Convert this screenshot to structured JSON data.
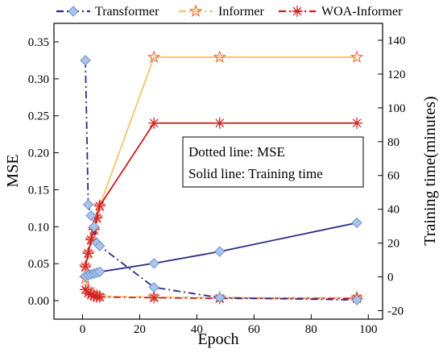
{
  "chart_data": {
    "type": "line",
    "xlabel": "Epoch",
    "ylabel": "MSE",
    "y2label": "Training time(minutes)",
    "xlim": [
      -10,
      105
    ],
    "ylim": [
      -0.025,
      0.375
    ],
    "y2lim": [
      -25,
      150
    ],
    "xticks": [
      0,
      20,
      40,
      60,
      80,
      100
    ],
    "yticks": [
      0.0,
      0.05,
      0.1,
      0.15,
      0.2,
      0.25,
      0.3,
      0.35
    ],
    "ytick_labels": [
      "0.00",
      "0.05",
      "0.10",
      "0.15",
      "0.20",
      "0.25",
      "0.30",
      "0.35"
    ],
    "y2ticks": [
      -20,
      0,
      20,
      40,
      60,
      80,
      100,
      120,
      140
    ],
    "grid": false,
    "legend_position": "top",
    "annotation_lines": [
      "Dotted line: MSE",
      "Solid line: Training time"
    ],
    "series": [
      {
        "name": "Transformer",
        "color": "#2b2a85",
        "marker": "diamond",
        "marker_color": "#a8c4ea",
        "mse_x": [
          1,
          2,
          3,
          4,
          5,
          6,
          25,
          48,
          96
        ],
        "mse_y": [
          0.325,
          0.13,
          0.115,
          0.1,
          0.078,
          0.074,
          0.018,
          0.004,
          0.001
        ],
        "time_x": [
          1,
          2,
          3,
          4,
          5,
          6,
          25,
          48,
          96
        ],
        "time_y": [
          0.5,
          1,
          1.5,
          2,
          2.5,
          3,
          8,
          15,
          32
        ]
      },
      {
        "name": "Informer",
        "color": "#f5c46b",
        "marker": "star",
        "marker_color": "#e8734a",
        "mse_x": [
          1,
          2,
          3,
          4,
          5,
          6,
          25,
          48,
          96
        ],
        "mse_y": [
          0.03,
          0.015,
          0.01,
          0.008,
          0.007,
          0.006,
          0.005,
          0.004,
          0.004
        ],
        "time_x": [
          1,
          2,
          3,
          4,
          5,
          6,
          25,
          48,
          96
        ],
        "time_y": [
          6,
          14,
          22,
          28,
          35,
          42,
          130,
          130,
          130
        ]
      },
      {
        "name": "WOA-Informer",
        "color": "#c81e1e",
        "marker": "asterisk",
        "marker_color": "#d02525",
        "mse_x": [
          1,
          2,
          3,
          4,
          5,
          6,
          25,
          48,
          96
        ],
        "mse_y": [
          0.015,
          0.01,
          0.008,
          0.006,
          0.005,
          0.005,
          0.004,
          0.003,
          0.003
        ],
        "time_x": [
          1,
          2,
          3,
          4,
          5,
          6,
          25,
          48,
          96
        ],
        "time_y": [
          6,
          14,
          22,
          28,
          35,
          42,
          91,
          91,
          91
        ]
      }
    ]
  }
}
